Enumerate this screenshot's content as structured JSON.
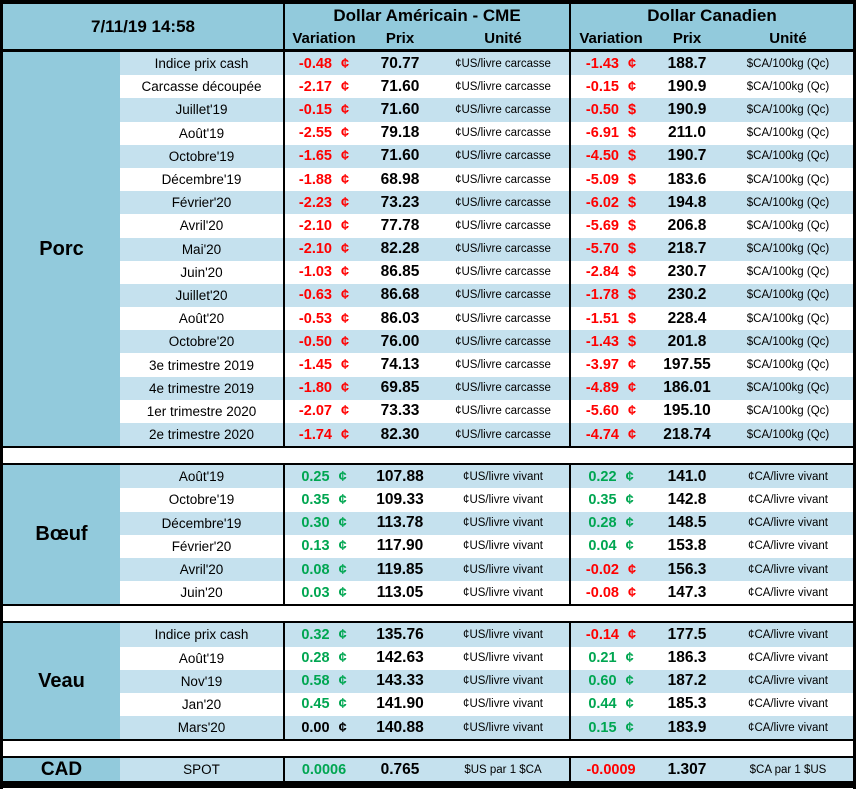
{
  "header": {
    "timestamp": "7/11/19 14:58",
    "usd_title": "Dollar Américain - CME",
    "cad_title": "Dollar Canadien",
    "columns": {
      "variation": "Variation",
      "prix": "Prix",
      "unite": "Unité"
    }
  },
  "colors": {
    "medium_blue": "#92CADC",
    "light_blue": "#C5E1EE",
    "positive": "#00A651",
    "negative": "#FF0000",
    "neutral": "#000000",
    "border": "#000000"
  },
  "sections": [
    {
      "id": "porc",
      "name": "Porc",
      "rows": [
        {
          "label": "Indice prix cash",
          "us": {
            "var": "-0.48",
            "sym": "¢",
            "prix": "70.77",
            "unit": "¢US/livre carcasse"
          },
          "ca": {
            "var": "-1.43",
            "sym": "¢",
            "prix": "188.7",
            "unit": "$CA/100kg (Qc)"
          }
        },
        {
          "label": "Carcasse découpée",
          "us": {
            "var": "-2.17",
            "sym": "¢",
            "prix": "71.60",
            "unit": "¢US/livre carcasse"
          },
          "ca": {
            "var": "-0.15",
            "sym": "¢",
            "prix": "190.9",
            "unit": "$CA/100kg (Qc)"
          }
        },
        {
          "label": "Juillet'19",
          "us": {
            "var": "-0.15",
            "sym": "¢",
            "prix": "71.60",
            "unit": "¢US/livre carcasse"
          },
          "ca": {
            "var": "-0.50",
            "sym": "$",
            "prix": "190.9",
            "unit": "$CA/100kg (Qc)"
          }
        },
        {
          "label": "Août'19",
          "us": {
            "var": "-2.55",
            "sym": "¢",
            "prix": "79.18",
            "unit": "¢US/livre carcasse"
          },
          "ca": {
            "var": "-6.91",
            "sym": "$",
            "prix": "211.0",
            "unit": "$CA/100kg (Qc)"
          }
        },
        {
          "label": "Octobre'19",
          "us": {
            "var": "-1.65",
            "sym": "¢",
            "prix": "71.60",
            "unit": "¢US/livre carcasse"
          },
          "ca": {
            "var": "-4.50",
            "sym": "$",
            "prix": "190.7",
            "unit": "$CA/100kg (Qc)"
          }
        },
        {
          "label": "Décembre'19",
          "us": {
            "var": "-1.88",
            "sym": "¢",
            "prix": "68.98",
            "unit": "¢US/livre carcasse"
          },
          "ca": {
            "var": "-5.09",
            "sym": "$",
            "prix": "183.6",
            "unit": "$CA/100kg (Qc)"
          }
        },
        {
          "label": "Février'20",
          "us": {
            "var": "-2.23",
            "sym": "¢",
            "prix": "73.23",
            "unit": "¢US/livre carcasse"
          },
          "ca": {
            "var": "-6.02",
            "sym": "$",
            "prix": "194.8",
            "unit": "$CA/100kg (Qc)"
          }
        },
        {
          "label": "Avril'20",
          "us": {
            "var": "-2.10",
            "sym": "¢",
            "prix": "77.78",
            "unit": "¢US/livre carcasse"
          },
          "ca": {
            "var": "-5.69",
            "sym": "$",
            "prix": "206.8",
            "unit": "$CA/100kg (Qc)"
          }
        },
        {
          "label": "Mai'20",
          "us": {
            "var": "-2.10",
            "sym": "¢",
            "prix": "82.28",
            "unit": "¢US/livre carcasse"
          },
          "ca": {
            "var": "-5.70",
            "sym": "$",
            "prix": "218.7",
            "unit": "$CA/100kg (Qc)"
          }
        },
        {
          "label": "Juin'20",
          "us": {
            "var": "-1.03",
            "sym": "¢",
            "prix": "86.85",
            "unit": "¢US/livre carcasse"
          },
          "ca": {
            "var": "-2.84",
            "sym": "$",
            "prix": "230.7",
            "unit": "$CA/100kg (Qc)"
          }
        },
        {
          "label": "Juillet'20",
          "us": {
            "var": "-0.63",
            "sym": "¢",
            "prix": "86.68",
            "unit": "¢US/livre carcasse"
          },
          "ca": {
            "var": "-1.78",
            "sym": "$",
            "prix": "230.2",
            "unit": "$CA/100kg (Qc)"
          }
        },
        {
          "label": "Août'20",
          "us": {
            "var": "-0.53",
            "sym": "¢",
            "prix": "86.03",
            "unit": "¢US/livre carcasse"
          },
          "ca": {
            "var": "-1.51",
            "sym": "$",
            "prix": "228.4",
            "unit": "$CA/100kg (Qc)"
          }
        },
        {
          "label": "Octobre'20",
          "us": {
            "var": "-0.50",
            "sym": "¢",
            "prix": "76.00",
            "unit": "¢US/livre carcasse"
          },
          "ca": {
            "var": "-1.43",
            "sym": "$",
            "prix": "201.8",
            "unit": "$CA/100kg (Qc)"
          }
        },
        {
          "label": "3e trimestre 2019",
          "us": {
            "var": "-1.45",
            "sym": "¢",
            "prix": "74.13",
            "unit": "¢US/livre carcasse"
          },
          "ca": {
            "var": "-3.97",
            "sym": "¢",
            "prix": "197.55",
            "unit": "$CA/100kg (Qc)"
          }
        },
        {
          "label": "4e trimestre 2019",
          "us": {
            "var": "-1.80",
            "sym": "¢",
            "prix": "69.85",
            "unit": "¢US/livre carcasse"
          },
          "ca": {
            "var": "-4.89",
            "sym": "¢",
            "prix": "186.01",
            "unit": "$CA/100kg (Qc)"
          }
        },
        {
          "label": "1er trimestre 2020",
          "us": {
            "var": "-2.07",
            "sym": "¢",
            "prix": "73.33",
            "unit": "¢US/livre carcasse"
          },
          "ca": {
            "var": "-5.60",
            "sym": "¢",
            "prix": "195.10",
            "unit": "$CA/100kg (Qc)"
          }
        },
        {
          "label": "2e trimestre 2020",
          "us": {
            "var": "-1.74",
            "sym": "¢",
            "prix": "82.30",
            "unit": "¢US/livre carcasse"
          },
          "ca": {
            "var": "-4.74",
            "sym": "¢",
            "prix": "218.74",
            "unit": "$CA/100kg (Qc)"
          }
        }
      ]
    },
    {
      "id": "boeuf",
      "name": "Bœuf",
      "rows": [
        {
          "label": "Août'19",
          "us": {
            "var": "0.25",
            "sym": "¢",
            "prix": "107.88",
            "unit": "¢US/livre vivant"
          },
          "ca": {
            "var": "0.22",
            "sym": "¢",
            "prix": "141.0",
            "unit": "¢CA/livre vivant"
          }
        },
        {
          "label": "Octobre'19",
          "us": {
            "var": "0.35",
            "sym": "¢",
            "prix": "109.33",
            "unit": "¢US/livre vivant"
          },
          "ca": {
            "var": "0.35",
            "sym": "¢",
            "prix": "142.8",
            "unit": "¢CA/livre vivant"
          }
        },
        {
          "label": "Décembre'19",
          "us": {
            "var": "0.30",
            "sym": "¢",
            "prix": "113.78",
            "unit": "¢US/livre vivant"
          },
          "ca": {
            "var": "0.28",
            "sym": "¢",
            "prix": "148.5",
            "unit": "¢CA/livre vivant"
          }
        },
        {
          "label": "Février'20",
          "us": {
            "var": "0.13",
            "sym": "¢",
            "prix": "117.90",
            "unit": "¢US/livre vivant"
          },
          "ca": {
            "var": "0.04",
            "sym": "¢",
            "prix": "153.8",
            "unit": "¢CA/livre vivant"
          }
        },
        {
          "label": "Avril'20",
          "us": {
            "var": "0.08",
            "sym": "¢",
            "prix": "119.85",
            "unit": "¢US/livre vivant"
          },
          "ca": {
            "var": "-0.02",
            "sym": "¢",
            "prix": "156.3",
            "unit": "¢CA/livre vivant"
          }
        },
        {
          "label": "Juin'20",
          "us": {
            "var": "0.03",
            "sym": "¢",
            "prix": "113.05",
            "unit": "¢US/livre vivant"
          },
          "ca": {
            "var": "-0.08",
            "sym": "¢",
            "prix": "147.3",
            "unit": "¢CA/livre vivant"
          }
        }
      ]
    },
    {
      "id": "veau",
      "name": "Veau",
      "rows": [
        {
          "label": "Indice prix cash",
          "us": {
            "var": "0.32",
            "sym": "¢",
            "prix": "135.76",
            "unit": "¢US/livre vivant"
          },
          "ca": {
            "var": "-0.14",
            "sym": "¢",
            "prix": "177.5",
            "unit": "¢CA/livre vivant"
          }
        },
        {
          "label": "Août'19",
          "us": {
            "var": "0.28",
            "sym": "¢",
            "prix": "142.63",
            "unit": "¢US/livre vivant"
          },
          "ca": {
            "var": "0.21",
            "sym": "¢",
            "prix": "186.3",
            "unit": "¢CA/livre vivant"
          }
        },
        {
          "label": "Nov'19",
          "us": {
            "var": "0.58",
            "sym": "¢",
            "prix": "143.33",
            "unit": "¢US/livre vivant"
          },
          "ca": {
            "var": "0.60",
            "sym": "¢",
            "prix": "187.2",
            "unit": "¢CA/livre vivant"
          }
        },
        {
          "label": "Jan'20",
          "us": {
            "var": "0.45",
            "sym": "¢",
            "prix": "141.90",
            "unit": "¢US/livre vivant"
          },
          "ca": {
            "var": "0.44",
            "sym": "¢",
            "prix": "185.3",
            "unit": "¢CA/livre vivant"
          }
        },
        {
          "label": "Mars'20",
          "us": {
            "var": "0.00",
            "sym": "¢",
            "prix": "140.88",
            "unit": "¢US/livre vivant"
          },
          "ca": {
            "var": "0.15",
            "sym": "¢",
            "prix": "183.9",
            "unit": "¢CA/livre vivant"
          }
        }
      ]
    },
    {
      "id": "cad",
      "name": "CAD",
      "rows": [
        {
          "label": "SPOT",
          "us": {
            "var": "0.0006",
            "sym": "",
            "prix": "0.765",
            "unit": "$US par 1 $CA"
          },
          "ca": {
            "var": "-0.0009",
            "sym": "",
            "prix": "1.307",
            "unit": "$CA par 1 $US"
          }
        }
      ]
    }
  ]
}
